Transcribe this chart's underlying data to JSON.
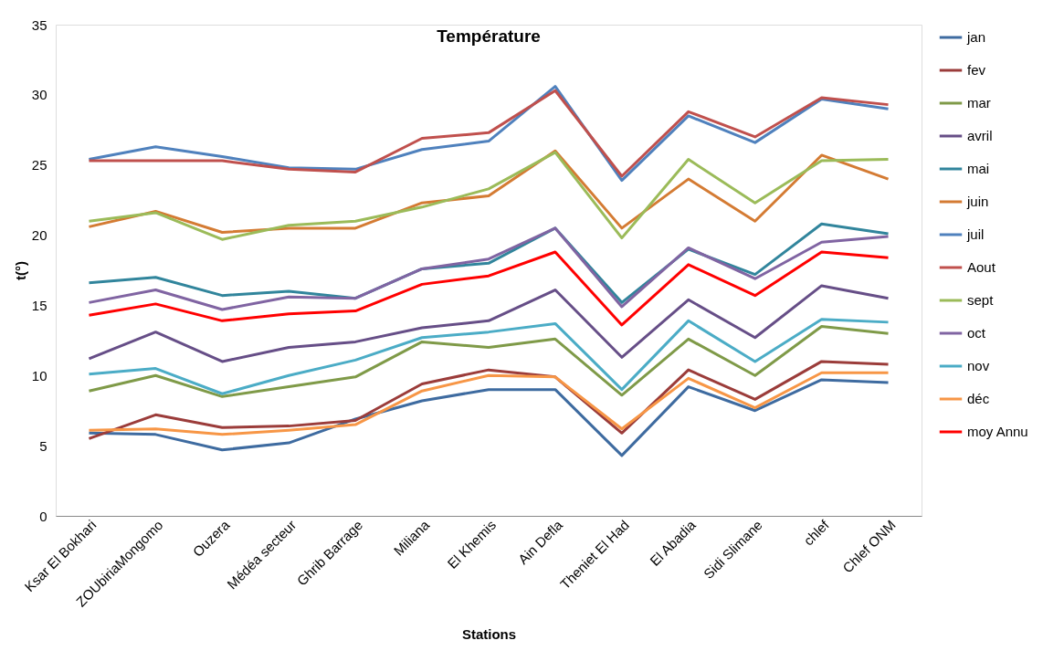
{
  "chart_data": {
    "type": "line",
    "title": "Température",
    "xlabel": "Stations",
    "ylabel": "t(°)",
    "categories": [
      "Ksar El Bokhari",
      "ZOUbiriaMongomo",
      "Ouzera",
      "Médéa secteur",
      "Ghrib Barrage",
      "Miliana",
      "El Khemis",
      "Ain Defla",
      "Theniet El Had",
      "El Abadia",
      "Sidi Slimane",
      "chlef",
      "Chlef ONM"
    ],
    "ylim": [
      0,
      35
    ],
    "yticks": [
      0,
      5,
      10,
      15,
      20,
      25,
      30,
      35
    ],
    "grid": false,
    "legend": "right",
    "marker": "none",
    "line_style": "solid",
    "series": [
      {
        "name": "jan",
        "color": "#3e6ba0",
        "values": [
          5.9,
          5.8,
          4.7,
          5.2,
          6.9,
          8.2,
          9.0,
          9.0,
          4.3,
          9.2,
          7.5,
          9.7,
          9.5
        ]
      },
      {
        "name": "fev",
        "color": "#9b3c3a",
        "values": [
          5.5,
          7.2,
          6.3,
          6.4,
          6.8,
          9.4,
          10.4,
          9.9,
          5.9,
          10.4,
          8.3,
          11.0,
          10.8
        ]
      },
      {
        "name": "mar",
        "color": "#7f9a48",
        "values": [
          8.9,
          10.0,
          8.5,
          9.2,
          9.9,
          12.4,
          12.0,
          12.6,
          8.6,
          12.6,
          10.0,
          13.5,
          13.0
        ]
      },
      {
        "name": "avril",
        "color": "#664e87",
        "values": [
          11.2,
          13.1,
          11.0,
          12.0,
          12.4,
          13.4,
          13.9,
          16.1,
          11.3,
          15.4,
          12.7,
          16.4,
          15.5
        ]
      },
      {
        "name": "mai",
        "color": "#31859c",
        "values": [
          16.6,
          17.0,
          15.7,
          16.0,
          15.5,
          17.6,
          18.0,
          20.5,
          15.2,
          19.0,
          17.2,
          20.8,
          20.1
        ]
      },
      {
        "name": "juin",
        "color": "#d47b33",
        "values": [
          20.6,
          21.7,
          20.2,
          20.5,
          20.5,
          22.3,
          22.8,
          26.0,
          20.5,
          24.0,
          21.0,
          25.7,
          24.0
        ]
      },
      {
        "name": "juil",
        "color": "#4f81bd",
        "values": [
          25.4,
          26.3,
          25.6,
          24.8,
          24.7,
          26.1,
          26.7,
          30.6,
          23.9,
          28.5,
          26.6,
          29.7,
          29.0
        ]
      },
      {
        "name": "Aout",
        "color": "#c0504d",
        "values": [
          25.3,
          25.3,
          25.3,
          24.7,
          24.5,
          26.9,
          27.3,
          30.3,
          24.2,
          28.8,
          27.0,
          29.8,
          29.3
        ]
      },
      {
        "name": "sept",
        "color": "#9bbb59",
        "values": [
          21.0,
          21.6,
          19.7,
          20.7,
          21.0,
          22.0,
          23.3,
          25.9,
          19.8,
          25.4,
          22.3,
          25.3,
          25.4
        ]
      },
      {
        "name": "oct",
        "color": "#8064a2",
        "values": [
          15.2,
          16.1,
          14.7,
          15.6,
          15.5,
          17.6,
          18.3,
          20.5,
          14.9,
          19.1,
          16.9,
          19.5,
          19.9
        ]
      },
      {
        "name": "nov",
        "color": "#4bacc6",
        "values": [
          10.1,
          10.5,
          8.7,
          10.0,
          11.1,
          12.7,
          13.1,
          13.7,
          9.0,
          13.9,
          11.0,
          14.0,
          13.8
        ]
      },
      {
        "name": "déc",
        "color": "#f79646",
        "values": [
          6.1,
          6.2,
          5.8,
          6.1,
          6.5,
          8.9,
          10.0,
          9.9,
          6.2,
          9.8,
          7.7,
          10.2,
          10.2
        ]
      },
      {
        "name": "moy Annu",
        "color": "#ff0000",
        "values": [
          14.3,
          15.1,
          13.9,
          14.4,
          14.6,
          16.5,
          17.1,
          18.8,
          13.6,
          17.9,
          15.7,
          18.8,
          18.4
        ]
      }
    ]
  }
}
